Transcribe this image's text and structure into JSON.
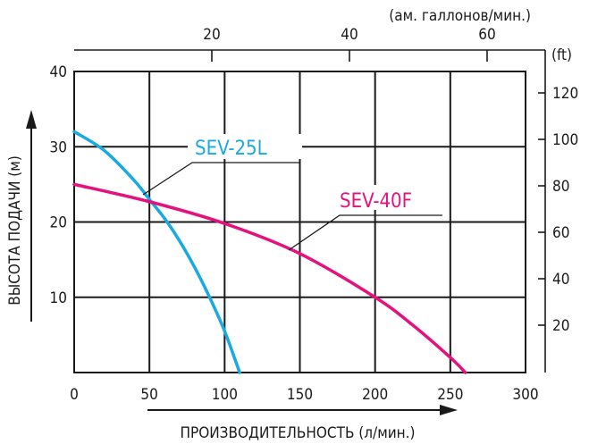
{
  "chart_data": {
    "type": "line",
    "xlabel": "ПРОИЗВОДИТЕЛЬНОСТЬ (л/мин.)",
    "ylabel": "ВЫСОТА ПОДАЧИ (м)",
    "x2label": "(ам. галлонов/мин.)",
    "y2label": "(ft)",
    "xlim": [
      0,
      300
    ],
    "ylim": [
      0,
      40
    ],
    "x_ticks": [
      "0",
      "50",
      "100",
      "150",
      "200",
      "250",
      "300"
    ],
    "y_ticks": [
      "10",
      "20",
      "30",
      "40"
    ],
    "x2_ticks": [
      "20",
      "40",
      "60"
    ],
    "y2_ticks": [
      "20",
      "40",
      "60",
      "80",
      "100",
      "120"
    ],
    "grid": true,
    "series": [
      {
        "name": "SEV-25L",
        "color": "#1ba9e1",
        "x": [
          0,
          20,
          40,
          50,
          60,
          70,
          80,
          90,
          100,
          110
        ],
        "y": [
          32,
          29.5,
          25.5,
          23,
          20.5,
          17.5,
          14,
          10,
          5.5,
          0
        ]
      },
      {
        "name": "SEV-40F",
        "color": "#e5127d",
        "x": [
          0,
          50,
          100,
          150,
          200,
          225,
          250,
          260
        ],
        "y": [
          25,
          22.7,
          19.8,
          15.8,
          10,
          6.3,
          2,
          0
        ]
      }
    ]
  }
}
